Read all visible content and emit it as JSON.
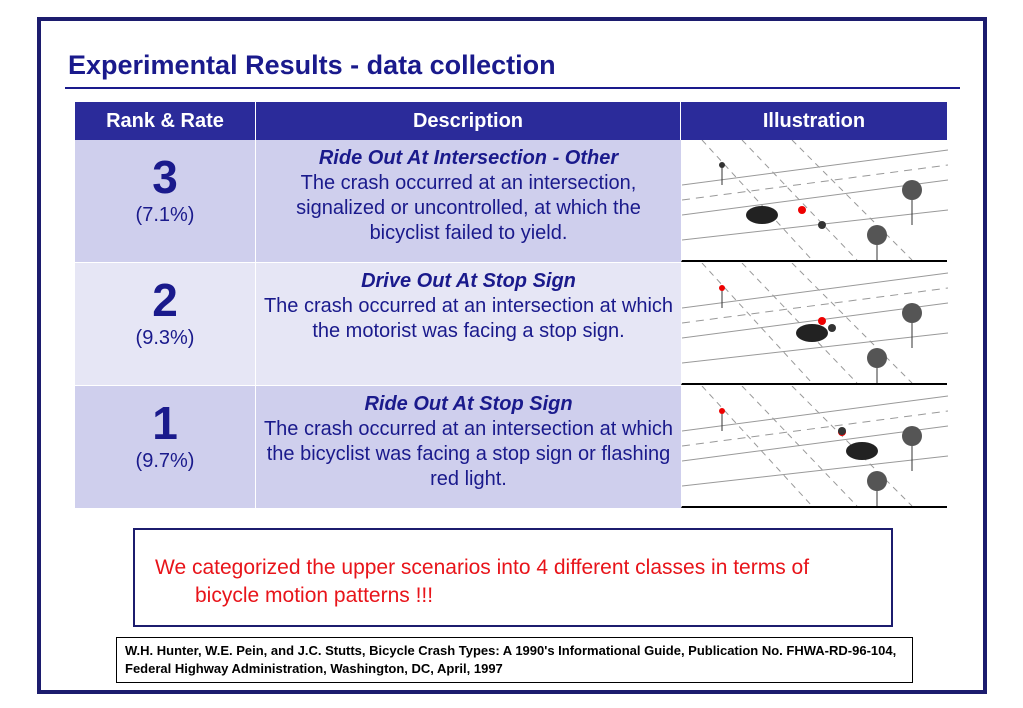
{
  "title": "Experimental Results - data collection",
  "table": {
    "header": [
      "Rank & Rate",
      "Description",
      "Illustration"
    ],
    "rows": [
      {
        "rank": "3",
        "rate": "(7.1%)",
        "desc_title": "Ride Out At Intersection - Other",
        "desc": "The crash occurred at an intersection, signalized or uncontrolled, at which the bicyclist failed to yield."
      },
      {
        "rank": "2",
        "rate": "(9.3%)",
        "desc_title": "Drive Out At Stop Sign",
        "desc": "The crash occurred at an intersection at which the motorist was facing a stop sign."
      },
      {
        "rank": "1",
        "rate": "(9.7%)",
        "desc_title": "Ride Out At Stop Sign",
        "desc": "The crash occurred at an intersection at which the bicyclist was facing a stop sign or flashing red light."
      }
    ]
  },
  "note": "We categorized the upper scenarios into 4 different classes in terms of bicycle motion patterns !!!",
  "reference": "W.H. Hunter, W.E. Pein, and J.C. Stutts, Bicycle Crash Types: A 1990's Informational Guide, Publication No. FHWA-RD-96-104, Federal Highway Administration, Washington, DC, April, 1997"
}
